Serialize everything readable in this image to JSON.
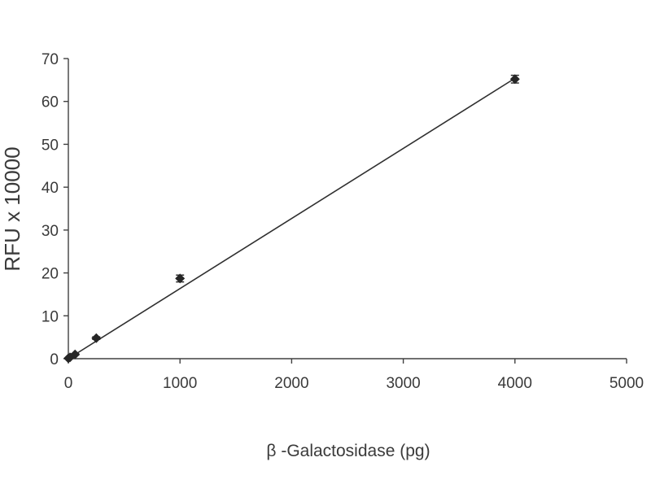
{
  "chart_data": {
    "type": "scatter",
    "title": "",
    "xlabel": "β -Galactosidase (pg)",
    "ylabel": "RFU x 10000",
    "xlim": [
      0,
      5000
    ],
    "ylim": [
      0,
      70
    ],
    "xticks": [
      0,
      1000,
      2000,
      3000,
      4000,
      5000
    ],
    "yticks": [
      0,
      10,
      20,
      30,
      40,
      50,
      60,
      70
    ],
    "grid": false,
    "legend": "none",
    "series": [
      {
        "marker": "diamond",
        "color": "#262626",
        "x": [
          0,
          15,
          60,
          250,
          1000,
          4000
        ],
        "y": [
          0.1,
          0.3,
          1.0,
          4.8,
          18.7,
          65.2
        ],
        "yerr": [
          0,
          0,
          0.2,
          0.3,
          0.8,
          0.9
        ]
      }
    ],
    "trendline": {
      "type": "linear",
      "x": [
        0,
        4000
      ],
      "y": [
        0.0,
        65.4
      ]
    }
  }
}
